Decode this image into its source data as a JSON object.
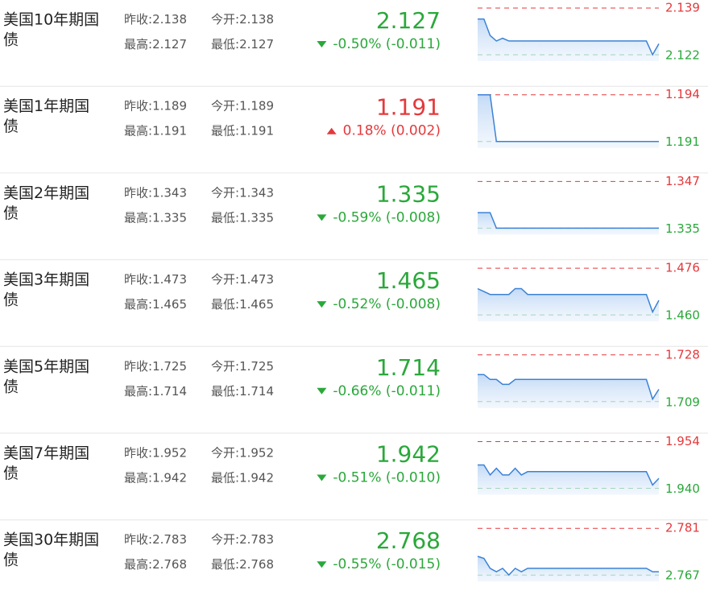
{
  "labels": {
    "prev": "昨收:",
    "open": "今开:",
    "high": "最高:",
    "low": "最低:"
  },
  "rows": [
    {
      "name": "美国10年期国债",
      "prev": "2.138",
      "open": "2.138",
      "high": "2.127",
      "low": "2.127",
      "price": "2.127",
      "change": "-0.50% (-0.011)",
      "color": "#2aa83a",
      "spark": {
        "ylim": [
          {
            "value": 2.122,
            "label": "2.122"
          },
          {
            "value": 2.139,
            "label": "2.139"
          }
        ],
        "values": [
          2.135,
          2.135,
          2.129,
          2.127,
          2.128,
          2.127,
          2.127,
          2.127,
          2.127,
          2.127,
          2.127,
          2.127,
          2.127,
          2.127,
          2.127,
          2.127,
          2.127,
          2.127,
          2.127,
          2.127,
          2.127,
          2.127,
          2.127,
          2.127,
          2.127,
          2.127,
          2.127,
          2.127,
          2.122,
          2.126
        ]
      }
    },
    {
      "name": "美国1年期国债",
      "prev": "1.189",
      "open": "1.189",
      "high": "1.191",
      "low": "1.191",
      "price": "1.191",
      "change": "0.18% (0.002)",
      "color": "#e4393c",
      "spark": {
        "ylim": [
          {
            "value": 1.191,
            "label": "1.191"
          },
          {
            "value": 1.194,
            "label": "1.194"
          }
        ],
        "values": [
          1.194,
          1.194,
          1.194,
          1.191,
          1.191,
          1.191,
          1.191,
          1.191,
          1.191,
          1.191,
          1.191,
          1.191,
          1.191,
          1.191,
          1.191,
          1.191,
          1.191,
          1.191,
          1.191,
          1.191,
          1.191,
          1.191,
          1.191,
          1.191,
          1.191,
          1.191,
          1.191,
          1.191,
          1.191,
          1.191
        ]
      }
    },
    {
      "name": "美国2年期国债",
      "prev": "1.343",
      "open": "1.343",
      "high": "1.335",
      "low": "1.335",
      "price": "1.335",
      "change": "-0.59% (-0.008)",
      "color": "#2aa83a",
      "spark": {
        "ylim": [
          {
            "value": 1.335,
            "label": "1.335"
          },
          {
            "value": 1.347,
            "label": "1.347"
          }
        ],
        "values": [
          1.339,
          1.339,
          1.339,
          1.335,
          1.335,
          1.335,
          1.335,
          1.335,
          1.335,
          1.335,
          1.335,
          1.335,
          1.335,
          1.335,
          1.335,
          1.335,
          1.335,
          1.335,
          1.335,
          1.335,
          1.335,
          1.335,
          1.335,
          1.335,
          1.335,
          1.335,
          1.335,
          1.335,
          1.335,
          1.335
        ]
      }
    },
    {
      "name": "美国3年期国债",
      "prev": "1.473",
      "open": "1.473",
      "high": "1.465",
      "low": "1.465",
      "price": "1.465",
      "change": "-0.52% (-0.008)",
      "color": "#2aa83a",
      "spark": {
        "ylim": [
          {
            "value": 1.46,
            "label": "1.460"
          },
          {
            "value": 1.476,
            "label": "1.476"
          }
        ],
        "values": [
          1.469,
          1.468,
          1.467,
          1.467,
          1.467,
          1.467,
          1.469,
          1.469,
          1.467,
          1.467,
          1.467,
          1.467,
          1.467,
          1.467,
          1.467,
          1.467,
          1.467,
          1.467,
          1.467,
          1.467,
          1.467,
          1.467,
          1.467,
          1.467,
          1.467,
          1.467,
          1.467,
          1.467,
          1.461,
          1.465
        ]
      }
    },
    {
      "name": "美国5年期国债",
      "prev": "1.725",
      "open": "1.725",
      "high": "1.714",
      "low": "1.714",
      "price": "1.714",
      "change": "-0.66% (-0.011)",
      "color": "#2aa83a",
      "spark": {
        "ylim": [
          {
            "value": 1.709,
            "label": "1.709"
          },
          {
            "value": 1.728,
            "label": "1.728"
          }
        ],
        "values": [
          1.72,
          1.72,
          1.718,
          1.718,
          1.716,
          1.716,
          1.718,
          1.718,
          1.718,
          1.718,
          1.718,
          1.718,
          1.718,
          1.718,
          1.718,
          1.718,
          1.718,
          1.718,
          1.718,
          1.718,
          1.718,
          1.718,
          1.718,
          1.718,
          1.718,
          1.718,
          1.718,
          1.718,
          1.71,
          1.714
        ]
      }
    },
    {
      "name": "美国7年期国债",
      "prev": "1.952",
      "open": "1.952",
      "high": "1.942",
      "low": "1.942",
      "price": "1.942",
      "change": "-0.51% (-0.010)",
      "color": "#2aa83a",
      "spark": {
        "ylim": [
          {
            "value": 1.94,
            "label": "1.940"
          },
          {
            "value": 1.954,
            "label": "1.954"
          }
        ],
        "values": [
          1.947,
          1.947,
          1.944,
          1.946,
          1.944,
          1.944,
          1.946,
          1.944,
          1.945,
          1.945,
          1.945,
          1.945,
          1.945,
          1.945,
          1.945,
          1.945,
          1.945,
          1.945,
          1.945,
          1.945,
          1.945,
          1.945,
          1.945,
          1.945,
          1.945,
          1.945,
          1.945,
          1.945,
          1.941,
          1.943
        ]
      }
    },
    {
      "name": "美国30年期国债",
      "prev": "2.783",
      "open": "2.783",
      "high": "2.768",
      "low": "2.768",
      "price": "2.768",
      "change": "-0.55% (-0.015)",
      "color": "#2aa83a",
      "spark": {
        "ylim": [
          {
            "value": 2.767,
            "label": "2.767"
          },
          {
            "value": 2.781,
            "label": "2.781"
          }
        ],
        "values": [
          2.7726,
          2.772,
          2.769,
          2.768,
          2.769,
          2.767,
          2.769,
          2.768,
          2.769,
          2.769,
          2.769,
          2.769,
          2.769,
          2.769,
          2.769,
          2.769,
          2.769,
          2.769,
          2.769,
          2.769,
          2.769,
          2.769,
          2.769,
          2.769,
          2.769,
          2.769,
          2.769,
          2.769,
          2.768,
          2.768
        ]
      }
    }
  ]
}
